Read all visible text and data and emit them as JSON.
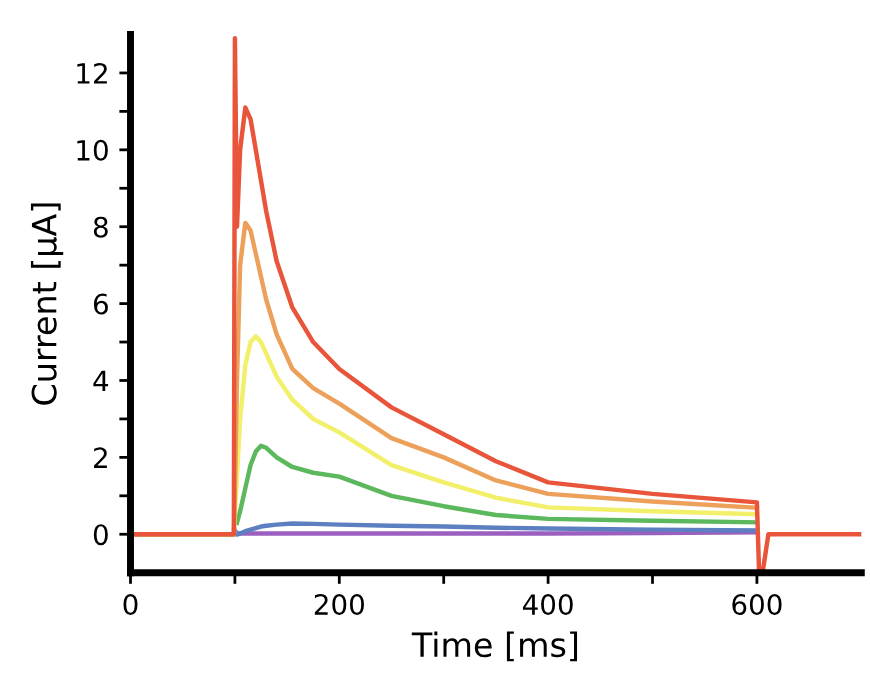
{
  "chart_data": {
    "type": "line",
    "xlabel": "Time [ms]",
    "ylabel": "Current [μA]",
    "x": [
      0,
      99,
      100,
      102,
      105,
      110,
      115,
      120,
      125,
      130,
      140,
      155,
      175,
      200,
      250,
      300,
      350,
      400,
      500,
      600,
      602,
      606,
      611,
      700
    ],
    "series": [
      {
        "color": "#9b5fc0",
        "values": [
          0,
          0,
          0.1,
          0,
          0.02,
          0.02,
          0.02,
          0.02,
          0.02,
          0.02,
          0.02,
          0.02,
          0.02,
          0.02,
          0.02,
          0.02,
          0.02,
          0.02,
          0.03,
          0.05,
          null,
          null,
          null,
          null
        ]
      },
      {
        "color": "#5b7fc0",
        "values": [
          0,
          0,
          0.1,
          0,
          0.02,
          0.08,
          0.12,
          0.16,
          0.2,
          0.22,
          0.25,
          0.28,
          0.27,
          0.25,
          0.22,
          0.2,
          0.17,
          0.15,
          0.12,
          0.1,
          null,
          null,
          null,
          null
        ]
      },
      {
        "color": "#5cb85c",
        "values": [
          0,
          0,
          null,
          0.3,
          0.6,
          1.2,
          1.8,
          2.15,
          2.3,
          2.25,
          2.0,
          1.75,
          1.6,
          1.5,
          1.0,
          0.73,
          0.5,
          0.4,
          0.35,
          0.31,
          null,
          null,
          null,
          null
        ]
      },
      {
        "color": "#f2ef6a",
        "values": [
          0,
          0,
          0.5,
          1.5,
          3.0,
          4.4,
          5.0,
          5.15,
          5.0,
          4.7,
          4.1,
          3.5,
          3.0,
          2.65,
          1.8,
          1.35,
          0.95,
          0.7,
          0.6,
          0.52,
          null,
          null,
          null,
          null
        ]
      },
      {
        "color": "#eda05a",
        "values": [
          0,
          0,
          1.0,
          4.0,
          7.0,
          8.1,
          7.9,
          7.3,
          6.7,
          6.1,
          5.2,
          4.3,
          3.8,
          3.4,
          2.5,
          2.0,
          1.4,
          1.05,
          0.85,
          0.69,
          null,
          null,
          null,
          null
        ]
      },
      {
        "color": "#e8553a",
        "values": [
          0,
          0,
          12.9,
          8.0,
          10.0,
          11.1,
          10.8,
          10.0,
          9.2,
          8.4,
          7.1,
          5.9,
          5.0,
          4.3,
          3.3,
          2.6,
          1.9,
          1.35,
          1.05,
          0.83,
          -0.9,
          -0.9,
          0,
          0
        ]
      }
    ],
    "xlim": [
      0,
      700
    ],
    "ylim": [
      -1,
      13
    ],
    "xticks": [
      0,
      {
        "value": 100,
        "label": null
      },
      200,
      {
        "value": 300,
        "label": null
      },
      400,
      {
        "value": 500,
        "label": null
      },
      600
    ],
    "yticks": [
      0,
      {
        "value": 1,
        "label": null
      },
      2,
      {
        "value": 3,
        "label": null
      },
      4,
      {
        "value": 5,
        "label": null
      },
      6,
      {
        "value": 7,
        "label": null
      },
      8,
      {
        "value": 9,
        "label": null
      },
      10,
      {
        "value": 11,
        "label": null
      },
      12
    ],
    "grid": false,
    "legend": false,
    "marker": "none",
    "line_style": "solid"
  }
}
